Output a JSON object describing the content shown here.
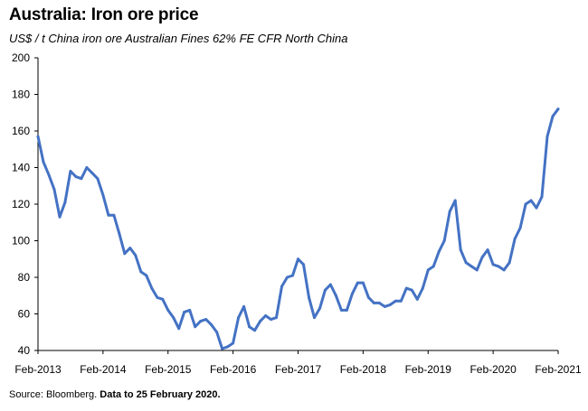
{
  "header": {
    "title": "Australia: Iron ore price",
    "subtitle": "US$ / t  China iron ore Australian Fines 62% FE CFR North China"
  },
  "footer": {
    "source_label": "Source: Bloomberg.",
    "source_note": "Data to 25 February 2020."
  },
  "chart_data": {
    "type": "line",
    "title": "Australia: Iron ore price",
    "ylabel": "US$ / t  China iron ore Australian Fines 62% FE CFR North China",
    "xlabel": "",
    "ylim": [
      40,
      200
    ],
    "yticks": [
      40,
      60,
      80,
      100,
      120,
      140,
      160,
      180,
      200
    ],
    "xlim": [
      "2013-02",
      "2021-02"
    ],
    "xticks": [
      "Feb-2013",
      "Feb-2014",
      "Feb-2015",
      "Feb-2016",
      "Feb-2017",
      "Feb-2018",
      "Feb-2019",
      "Feb-2020",
      "Feb-2021"
    ],
    "grid": false,
    "legend": "none",
    "color": "#4472c4",
    "series": [
      {
        "x": [
          "2013-02",
          "2013-03",
          "2013-04",
          "2013-05",
          "2013-06",
          "2013-07",
          "2013-08",
          "2013-09",
          "2013-10",
          "2013-11",
          "2013-12",
          "2014-01",
          "2014-02",
          "2014-03",
          "2014-04",
          "2014-05",
          "2014-06",
          "2014-07",
          "2014-08",
          "2014-09",
          "2014-10",
          "2014-11",
          "2014-12",
          "2015-01",
          "2015-02",
          "2015-03",
          "2015-04",
          "2015-05",
          "2015-06",
          "2015-07",
          "2015-08",
          "2015-09",
          "2015-10",
          "2015-11",
          "2015-12",
          "2016-01",
          "2016-02",
          "2016-03",
          "2016-04",
          "2016-05",
          "2016-06",
          "2016-07",
          "2016-08",
          "2016-09",
          "2016-10",
          "2016-11",
          "2016-12",
          "2017-01",
          "2017-02",
          "2017-03",
          "2017-04",
          "2017-05",
          "2017-06",
          "2017-07",
          "2017-08",
          "2017-09",
          "2017-10",
          "2017-11",
          "2017-12",
          "2018-01",
          "2018-02",
          "2018-03",
          "2018-04",
          "2018-05",
          "2018-06",
          "2018-07",
          "2018-08",
          "2018-09",
          "2018-10",
          "2018-11",
          "2018-12",
          "2019-01",
          "2019-02",
          "2019-03",
          "2019-04",
          "2019-05",
          "2019-06",
          "2019-07",
          "2019-08",
          "2019-09",
          "2019-10",
          "2019-11",
          "2019-12",
          "2020-01",
          "2020-02",
          "2020-03",
          "2020-04",
          "2020-05",
          "2020-06",
          "2020-07",
          "2020-08",
          "2020-09",
          "2020-10",
          "2020-11",
          "2020-12",
          "2021-01",
          "2021-02"
        ],
        "values": [
          157,
          143,
          136,
          128,
          113,
          121,
          138,
          135,
          134,
          140,
          137,
          134,
          125,
          114,
          114,
          104,
          93,
          96,
          92,
          83,
          81,
          74,
          69,
          68,
          62,
          58,
          52,
          61,
          62,
          53,
          56,
          57,
          54,
          50,
          41,
          42,
          44,
          58,
          64,
          53,
          51,
          56,
          59,
          57,
          58,
          75,
          80,
          81,
          90,
          87,
          69,
          58,
          63,
          73,
          76,
          70,
          62,
          62,
          71,
          77,
          77,
          69,
          66,
          66,
          64,
          65,
          67,
          67,
          74,
          73,
          68,
          74,
          84,
          86,
          94,
          100,
          116,
          122,
          95,
          88,
          86,
          84,
          91,
          95,
          87,
          86,
          84,
          88,
          101,
          107,
          120,
          122,
          118,
          124,
          157,
          168,
          172
        ]
      }
    ]
  }
}
